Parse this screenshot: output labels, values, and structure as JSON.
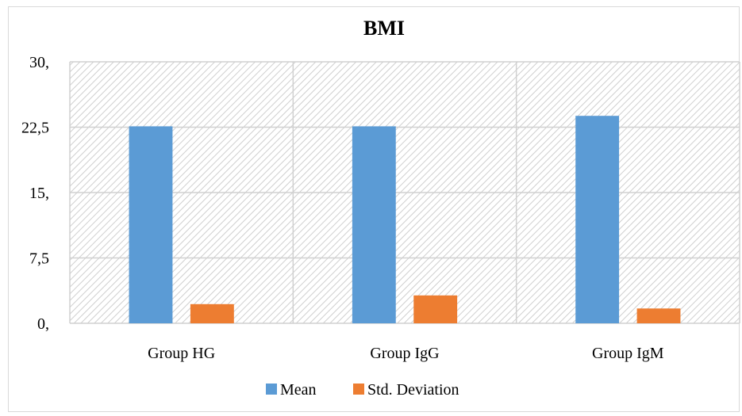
{
  "chart_data": {
    "type": "bar",
    "title": "BMI",
    "xlabel": "",
    "ylabel": "",
    "categories": [
      "Group HG",
      "Group IgG",
      "Group IgM"
    ],
    "series": [
      {
        "name": "Mean",
        "values": [
          22.6,
          22.6,
          23.8
        ],
        "color": "#5b9bd5"
      },
      {
        "name": "Std. Deviation",
        "values": [
          2.2,
          3.2,
          1.7
        ],
        "color": "#ed7d31"
      }
    ],
    "ylim": [
      0,
      30
    ],
    "yticks": [
      0,
      7.5,
      15,
      22.5,
      30
    ],
    "ytick_labels": [
      "0,",
      "7,5",
      "15,",
      "22,5",
      "30,"
    ],
    "grid": true,
    "plot_background": "hatched-light-gray",
    "legend_position": "bottom"
  }
}
